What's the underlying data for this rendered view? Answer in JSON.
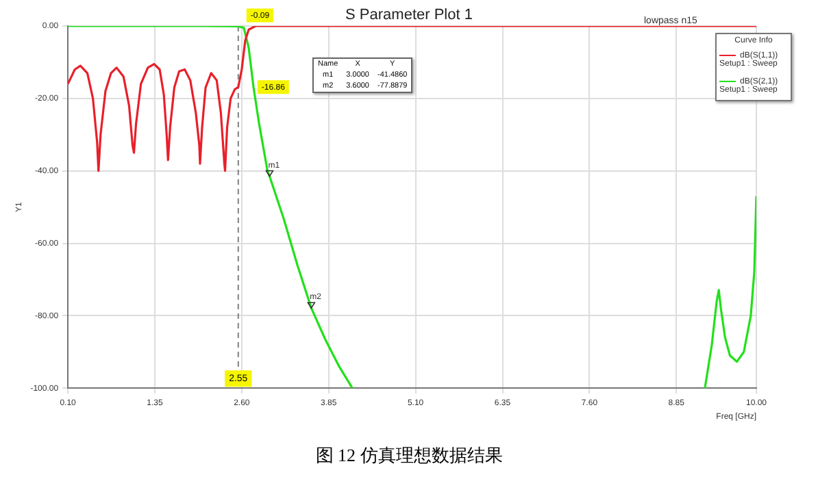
{
  "chart_data": {
    "type": "line",
    "title": "S Parameter Plot 1",
    "subtitle": "lowpass n15",
    "xlabel": "Freq [GHz]",
    "ylabel": "Y1",
    "legend_title": "Curve Info",
    "legend": "top right",
    "grid": true,
    "marker": "none",
    "line_style": "solid",
    "xlim": [
      0.1,
      10
    ],
    "xticks": [
      {
        "value": 0.1,
        "label": "0.10"
      },
      {
        "value": 1.35,
        "label": "1.35"
      },
      {
        "value": 2.6,
        "label": "2.60"
      },
      {
        "value": 3.85,
        "label": "3.85"
      },
      {
        "value": 5.1,
        "label": "5.10"
      },
      {
        "value": 6.35,
        "label": "6.35"
      },
      {
        "value": 7.6,
        "label": "7.60"
      },
      {
        "value": 8.85,
        "label": "8.85"
      },
      {
        "value": 10,
        "label": "10.00"
      }
    ],
    "ylim": [
      -100,
      0
    ],
    "yticks": [
      {
        "value": -100,
        "label": "-100.00"
      },
      {
        "value": -80,
        "label": "-80.00"
      },
      {
        "value": -60,
        "label": "-60.00"
      },
      {
        "value": -40,
        "label": "-40.00"
      },
      {
        "value": -20,
        "label": "-20.00"
      },
      {
        "value": 0,
        "label": "0.00"
      }
    ],
    "series": [
      {
        "name": "dB(S(1,1)) Setup1 : Sweep",
        "color": "#e8202a",
        "x": [
          0.1,
          0.2,
          0.28,
          0.38,
          0.46,
          0.52,
          0.54,
          0.57,
          0.64,
          0.72,
          0.8,
          0.9,
          0.98,
          1.03,
          1.05,
          1.08,
          1.15,
          1.25,
          1.34,
          1.42,
          1.48,
          1.52,
          1.54,
          1.57,
          1.63,
          1.7,
          1.78,
          1.86,
          1.94,
          1.99,
          2.0,
          2.03,
          2.08,
          2.16,
          2.24,
          2.3,
          2.35,
          2.36,
          2.39,
          2.44,
          2.5,
          2.55,
          2.6,
          2.65,
          2.7,
          2.8,
          3.5,
          10.0
        ],
        "values": [
          -16,
          -12,
          -11,
          -13,
          -20,
          -32,
          -40,
          -30,
          -18,
          -13,
          -11.5,
          -14,
          -22,
          -33,
          -35,
          -27,
          -16,
          -11.5,
          -10.5,
          -12,
          -19,
          -30,
          -37,
          -28,
          -17,
          -12.5,
          -12,
          -15,
          -24,
          -33,
          -38,
          -28,
          -17,
          -13,
          -15,
          -24,
          -38,
          -40,
          -28,
          -20,
          -17.5,
          -16.86,
          -12,
          -4,
          -1,
          0,
          0,
          0
        ]
      },
      {
        "name": "dB(S(2,1)) Setup1 : Sweep",
        "color": "#22e01a",
        "x": [
          0.1,
          1.0,
          2.0,
          2.55,
          2.63,
          2.7,
          2.77,
          2.85,
          2.97,
          3.0,
          3.2,
          3.4,
          3.6,
          3.8,
          4.0,
          4.19,
          6.0,
          9.26,
          9.36,
          9.43,
          9.46,
          9.49,
          9.55,
          9.62,
          9.72,
          9.82,
          9.92,
          9.97,
          10.0
        ],
        "values": [
          0,
          0,
          0,
          -0.09,
          -0.5,
          -6,
          -17,
          -27,
          -40,
          -41.486,
          -53,
          -66,
          -77.8879,
          -86.5,
          -94,
          -100,
          null,
          -100,
          -88,
          -76,
          -72.9,
          -78,
          -86,
          -91,
          -92.7,
          -90,
          -80,
          -68,
          -47
        ]
      }
    ],
    "ref_lines": [
      {
        "axis": "x",
        "value": 2.55,
        "label": "2.55",
        "color": "#808080",
        "line_style": "dashed"
      }
    ],
    "annotations": [
      {
        "text": "-0.09",
        "x": 2.55,
        "y": -0.09
      },
      {
        "text": "-16.86",
        "x": 2.55,
        "y": -16.86
      },
      {
        "text": "m1",
        "x": 3.0,
        "y": -41.486
      },
      {
        "text": "m2",
        "x": 3.6,
        "y": -77.8879
      },
      "Name",
      "X",
      "Y",
      "m1",
      "3.0000",
      "-41.4860",
      "m2",
      "3.6000",
      "-77.8879",
      {
        "text": "图 12 仿真理想数据结果"
      }
    ]
  }
}
